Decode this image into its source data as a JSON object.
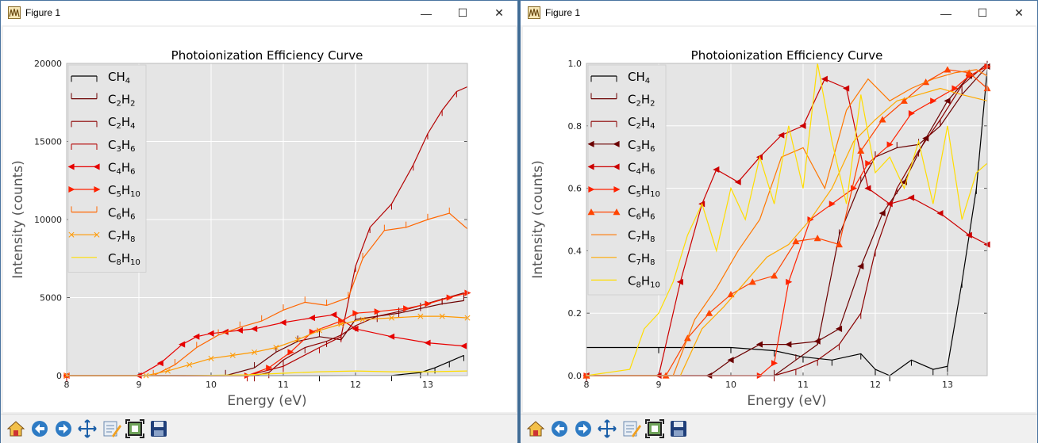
{
  "windows": [
    {
      "title": "Figure 1",
      "controls": {
        "minimize": "—",
        "maximize": "☐",
        "close": "✕"
      },
      "toolbar": [
        "home-icon",
        "back-arrow-icon",
        "forward-arrow-icon",
        "pan-icon",
        "configure-subplots-icon",
        "zoom-rect-icon",
        "save-icon"
      ],
      "chart_data": {
        "type": "line",
        "title": "Photoionization Efficiency Curve",
        "xlabel": "Energy (eV)",
        "ylabel": "Intensity (counts)",
        "xlim": [
          8,
          13.55
        ],
        "ylim": [
          0,
          20000
        ],
        "xticks": [
          8,
          9,
          10,
          11,
          12,
          13
        ],
        "yticks": [
          0,
          5000,
          10000,
          15000,
          20000
        ],
        "grid": true,
        "legend_position": "top-left",
        "series": [
          {
            "name": "CH₄",
            "color": "#000000",
            "marker": "tick-down",
            "x": [
              8,
              11.5,
              12.5,
              12.9,
              13.1,
              13.3,
              13.5
            ],
            "y": [
              0,
              0,
              10,
              200,
              500,
              900,
              1300
            ]
          },
          {
            "name": "C₂H₂",
            "color": "#6b0000",
            "marker": "tick-up",
            "x": [
              8,
              10.2,
              10.6,
              10.9,
              11.2,
              11.5,
              11.8,
              12.0,
              12.3,
              12.6,
              12.9,
              13.2,
              13.5
            ],
            "y": [
              0,
              0,
              500,
              1500,
              2200,
              2500,
              2300,
              3600,
              3800,
              4000,
              4300,
              4600,
              4800
            ]
          },
          {
            "name": "C₂H₄",
            "color": "#8b0000",
            "marker": "tick-down",
            "x": [
              8,
              10.6,
              10.8,
              11.0,
              11.3,
              11.6,
              11.8,
              12.0,
              12.3,
              12.6,
              12.9,
              13.2,
              13.5
            ],
            "y": [
              0,
              0,
              200,
              1000,
              1800,
              2200,
              2600,
              3200,
              3800,
              4100,
              4500,
              4900,
              5300
            ]
          },
          {
            "name": "C₃H₆",
            "color": "#b30000",
            "marker": "tick-down",
            "x": [
              8,
              10.5,
              11.0,
              11.5,
              11.8,
              12.0,
              12.2,
              12.5,
              12.8,
              13.0,
              13.2,
              13.4,
              13.55
            ],
            "y": [
              0,
              0,
              600,
              1800,
              2500,
              7000,
              9500,
              11000,
              13500,
              15500,
              17000,
              18200,
              18500
            ]
          },
          {
            "name": "C₄H₆",
            "color": "#e60000",
            "marker": "triangle-left",
            "x": [
              8,
              9.0,
              9.3,
              9.6,
              9.8,
              10.0,
              10.2,
              10.4,
              10.6,
              11.0,
              11.4,
              11.7,
              12.0,
              12.5,
              13.0,
              13.5
            ],
            "y": [
              0,
              0,
              800,
              2000,
              2500,
              2700,
              2800,
              2900,
              3000,
              3400,
              3700,
              3900,
              3000,
              2500,
              2100,
              1900
            ]
          },
          {
            "name": "C₅H₁₀",
            "color": "#ff2200",
            "marker": "triangle-right",
            "x": [
              8,
              10.5,
              10.8,
              11.1,
              11.4,
              11.8,
              12.0,
              12.3,
              12.7,
              13.0,
              13.3,
              13.55
            ],
            "y": [
              0,
              0,
              500,
              1500,
              2800,
              3500,
              4000,
              4100,
              4300,
              4600,
              5000,
              5300
            ]
          },
          {
            "name": "C₆H₆",
            "color": "#ff6600",
            "marker": "tick-up",
            "x": [
              8,
              9.2,
              9.5,
              9.8,
              10.1,
              10.4,
              10.7,
              11.0,
              11.3,
              11.6,
              11.9,
              12.1,
              12.4,
              12.7,
              13.0,
              13.3,
              13.55
            ],
            "y": [
              0,
              0,
              700,
              1800,
              2600,
              3100,
              3500,
              4200,
              4700,
              4500,
              5000,
              7500,
              9300,
              9500,
              10000,
              10400,
              9400
            ]
          },
          {
            "name": "C₇H₈",
            "color": "#ff9900",
            "marker": "x",
            "x": [
              8,
              9.1,
              9.4,
              9.7,
              10.0,
              10.3,
              10.6,
              10.9,
              11.2,
              11.5,
              11.8,
              12.1,
              12.5,
              12.9,
              13.2,
              13.55
            ],
            "y": [
              0,
              0,
              300,
              700,
              1100,
              1300,
              1500,
              1800,
              2300,
              2900,
              3300,
              3600,
              3700,
              3800,
              3800,
              3700
            ]
          },
          {
            "name": "C₈H₁₀",
            "color": "#ffdd00",
            "marker": "none",
            "x": [
              8,
              9.5,
              10.0,
              10.5,
              11.0,
              11.5,
              12.0,
              12.5,
              13.0,
              13.55
            ],
            "y": [
              0,
              0,
              20,
              50,
              150,
              250,
              300,
              250,
              250,
              300
            ]
          }
        ]
      }
    },
    {
      "title": "Figure 1",
      "controls": {
        "minimize": "—",
        "maximize": "☐",
        "close": "✕"
      },
      "toolbar": [
        "home-icon",
        "back-arrow-icon",
        "forward-arrow-icon",
        "pan-icon",
        "configure-subplots-icon",
        "zoom-rect-icon",
        "save-icon"
      ],
      "chart_data": {
        "type": "line",
        "title": "Photoionization Efficiency Curve",
        "xlabel": "Energy (eV)",
        "ylabel": "Intensity (counts)",
        "xlim": [
          8,
          13.55
        ],
        "ylim": [
          0,
          1.0
        ],
        "xticks": [
          8,
          9,
          10,
          11,
          12,
          13
        ],
        "yticks": [
          0.0,
          0.2,
          0.4,
          0.6,
          0.8,
          1.0
        ],
        "ytick_format": 1,
        "grid": true,
        "legend_position": "top-left",
        "series": [
          {
            "name": "CH₄",
            "color": "#000000",
            "marker": "tick-down",
            "x": [
              8,
              9.0,
              10.0,
              10.6,
              11.0,
              11.4,
              11.8,
              12.0,
              12.2,
              12.5,
              12.8,
              13.0,
              13.2,
              13.4,
              13.55
            ],
            "y": [
              0.09,
              0.09,
              0.09,
              0.08,
              0.06,
              0.05,
              0.07,
              0.02,
              0.0,
              0.05,
              0.02,
              0.03,
              0.3,
              0.6,
              0.98
            ]
          },
          {
            "name": "C₂H₂",
            "color": "#6b0000",
            "marker": "tick-up",
            "x": [
              8,
              10.6,
              10.9,
              11.2,
              11.5,
              11.8,
              12.0,
              12.3,
              12.6,
              12.9,
              13.2,
              13.55
            ],
            "y": [
              0.0,
              0.0,
              0.05,
              0.1,
              0.45,
              0.62,
              0.7,
              0.73,
              0.74,
              0.8,
              0.9,
              0.99
            ]
          },
          {
            "name": "C₂H₄",
            "color": "#8b0000",
            "marker": "tick-down",
            "x": [
              8,
              10.6,
              10.9,
              11.2,
              11.5,
              11.8,
              12.0,
              12.3,
              12.6,
              12.9,
              13.2,
              13.55
            ],
            "y": [
              0.0,
              0.0,
              0.02,
              0.05,
              0.1,
              0.2,
              0.4,
              0.6,
              0.72,
              0.82,
              0.93,
              1.0
            ]
          },
          {
            "name": "C₃H₆",
            "color": "#6b0000",
            "marker": "triangle-left",
            "x": [
              8,
              9.7,
              10.0,
              10.4,
              10.8,
              11.2,
              11.5,
              11.8,
              12.1,
              12.4,
              12.7,
              13.0,
              13.3,
              13.55
            ],
            "y": [
              0.0,
              0.0,
              0.05,
              0.1,
              0.1,
              0.11,
              0.15,
              0.35,
              0.52,
              0.62,
              0.76,
              0.88,
              0.96,
              0.99
            ]
          },
          {
            "name": "C₄H₆",
            "color": "#cc0000",
            "marker": "triangle-left",
            "x": [
              8,
              9.0,
              9.3,
              9.6,
              9.8,
              10.1,
              10.4,
              10.7,
              11.0,
              11.3,
              11.6,
              11.9,
              12.2,
              12.5,
              12.9,
              13.3,
              13.55
            ],
            "y": [
              0.0,
              0.0,
              0.3,
              0.55,
              0.66,
              0.62,
              0.7,
              0.77,
              0.8,
              0.95,
              0.92,
              0.6,
              0.55,
              0.57,
              0.52,
              0.45,
              0.42
            ]
          },
          {
            "name": "C₅H₁₀",
            "color": "#ff2200",
            "marker": "triangle-right",
            "x": [
              8,
              10.4,
              10.6,
              10.8,
              11.1,
              11.4,
              11.7,
              11.9,
              12.2,
              12.5,
              12.8,
              13.1,
              13.3,
              13.55
            ],
            "y": [
              0.0,
              0.0,
              0.04,
              0.3,
              0.5,
              0.55,
              0.6,
              0.68,
              0.74,
              0.84,
              0.88,
              0.92,
              0.96,
              0.99
            ]
          },
          {
            "name": "C₆H₆",
            "color": "#ff4400",
            "marker": "triangle-up",
            "x": [
              8,
              9.1,
              9.4,
              9.7,
              10.0,
              10.3,
              10.6,
              10.9,
              11.2,
              11.5,
              11.8,
              12.1,
              12.4,
              12.7,
              13.0,
              13.3,
              13.55
            ],
            "y": [
              0.0,
              0.0,
              0.12,
              0.2,
              0.26,
              0.3,
              0.32,
              0.43,
              0.44,
              0.42,
              0.72,
              0.82,
              0.88,
              0.94,
              0.98,
              0.97,
              0.92
            ]
          },
          {
            "name": "C₇H₈",
            "color": "#ff7700",
            "marker": "none",
            "x": [
              8,
              9.2,
              9.5,
              9.8,
              10.1,
              10.4,
              10.7,
              11.0,
              11.3,
              11.6,
              11.9,
              12.2,
              12.5,
              12.8,
              13.1,
              13.4,
              13.55
            ],
            "y": [
              0.0,
              0.0,
              0.18,
              0.28,
              0.4,
              0.5,
              0.7,
              0.73,
              0.6,
              0.85,
              0.95,
              0.88,
              0.92,
              0.95,
              0.97,
              0.98,
              0.96
            ]
          },
          {
            "name": "C₇H₈",
            "color": "#ffaa00",
            "marker": "none",
            "x": [
              8,
              9.3,
              9.6,
              9.9,
              10.2,
              10.5,
              10.8,
              11.1,
              11.4,
              11.7,
              12.0,
              12.3,
              12.6,
              12.9,
              13.2,
              13.55
            ],
            "y": [
              0.0,
              0.0,
              0.15,
              0.22,
              0.3,
              0.38,
              0.42,
              0.5,
              0.6,
              0.75,
              0.82,
              0.88,
              0.9,
              0.92,
              0.9,
              0.88
            ]
          },
          {
            "name": "C₈H₁₀",
            "color": "#ffdd00",
            "marker": "none",
            "x": [
              8,
              8.6,
              8.8,
              9.0,
              9.2,
              9.4,
              9.6,
              9.8,
              10.0,
              10.2,
              10.4,
              10.6,
              10.8,
              11.0,
              11.2,
              11.4,
              11.6,
              11.8,
              12.0,
              12.2,
              12.4,
              12.6,
              12.8,
              13.0,
              13.2,
              13.4,
              13.55
            ],
            "y": [
              0.0,
              0.02,
              0.15,
              0.2,
              0.3,
              0.45,
              0.55,
              0.4,
              0.6,
              0.5,
              0.7,
              0.55,
              0.8,
              0.6,
              1.0,
              0.75,
              0.55,
              0.9,
              0.65,
              0.7,
              0.6,
              0.75,
              0.55,
              0.8,
              0.5,
              0.65,
              0.68
            ]
          }
        ]
      }
    }
  ]
}
